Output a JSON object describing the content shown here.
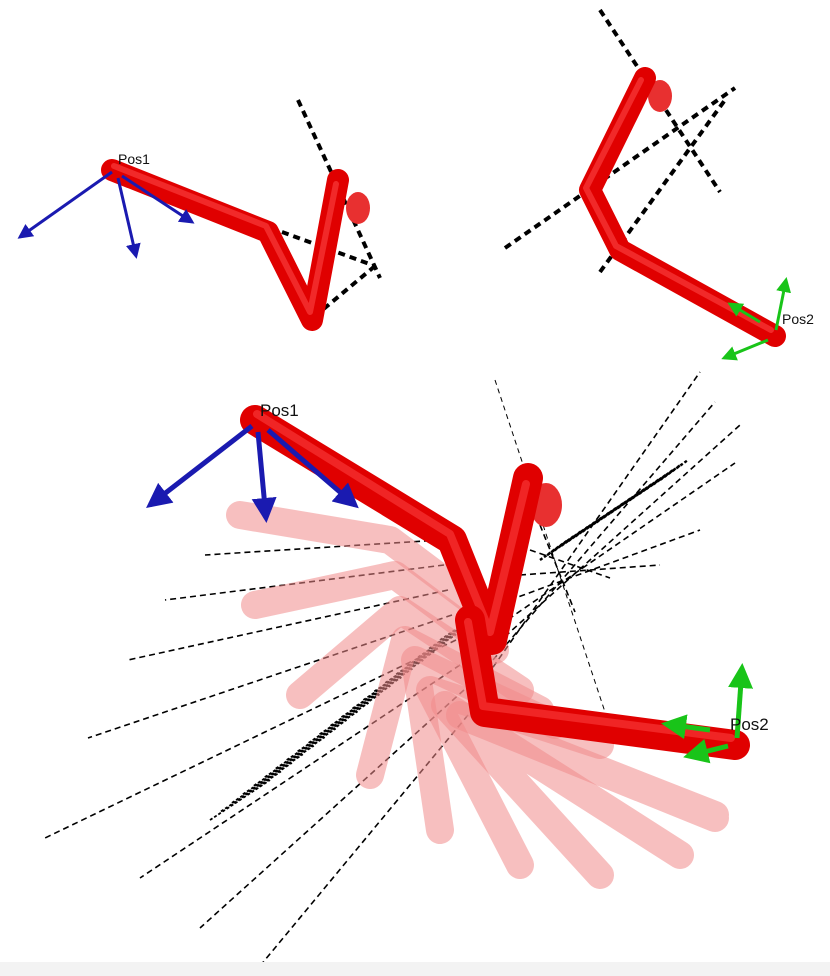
{
  "labels": {
    "top_left": "Pos1",
    "top_right": "Pos2",
    "bottom_start": "Pos1",
    "bottom_end": "Pos2"
  },
  "colors": {
    "arm": "#e00000",
    "arm_highlight": "#ff4a4a",
    "ghost_arm": "#f08a8a",
    "frame_pos1": "#1a1ab0",
    "frame_pos2": "#19c419",
    "trajectory_lines": "#000000",
    "footer_strip": "#f3f3f3"
  },
  "icons": {
    "frame_pos1": "coordinate-frame-axes-icon",
    "frame_pos2": "coordinate-frame-axes-icon"
  },
  "ghost_pose_count": 8
}
